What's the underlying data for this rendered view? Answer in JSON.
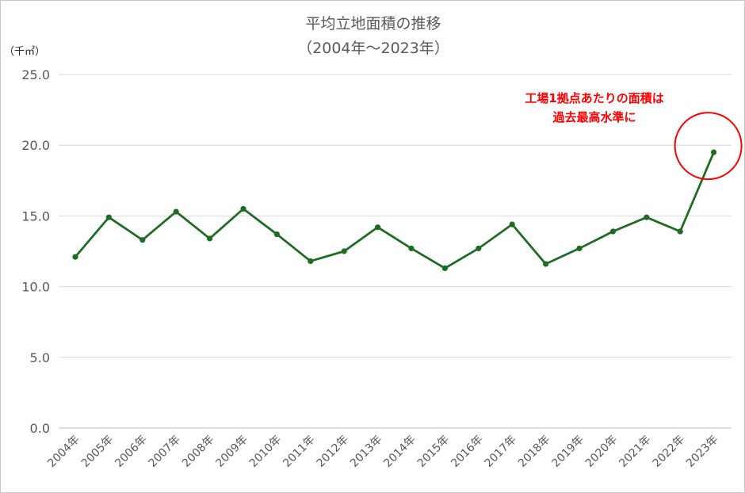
{
  "chart_data": {
    "type": "line",
    "title": "平均立地面積の推移",
    "subtitle": "（2004年～2023年）",
    "unit_label": "（千㎡）",
    "categories": [
      "2004年",
      "2005年",
      "2006年",
      "2007年",
      "2008年",
      "2009年",
      "2010年",
      "2011年",
      "2012年",
      "2013年",
      "2014年",
      "2015年",
      "2016年",
      "2017年",
      "2018年",
      "2019年",
      "2020年",
      "2021年",
      "2022年",
      "2023年"
    ],
    "series": [
      {
        "values": [
          12.1,
          14.9,
          13.3,
          15.3,
          13.4,
          15.5,
          13.7,
          11.8,
          12.5,
          14.2,
          12.7,
          11.3,
          12.7,
          14.4,
          11.6,
          12.7,
          13.9,
          14.9,
          13.9,
          19.5
        ]
      }
    ],
    "ylim": [
      0,
      25
    ],
    "yticks": [
      "0.0",
      "5.0",
      "10.0",
      "15.0",
      "20.0",
      "25.0"
    ],
    "grid": true,
    "annotation": {
      "lines": [
        "工場1拠点あたりの面積は",
        "過去最高水準に"
      ],
      "target_index": 19
    },
    "colors": {
      "line": "#1e6b23",
      "annotation": "#ff0000",
      "grid": "#d9d9d9",
      "text": "#595959"
    }
  }
}
